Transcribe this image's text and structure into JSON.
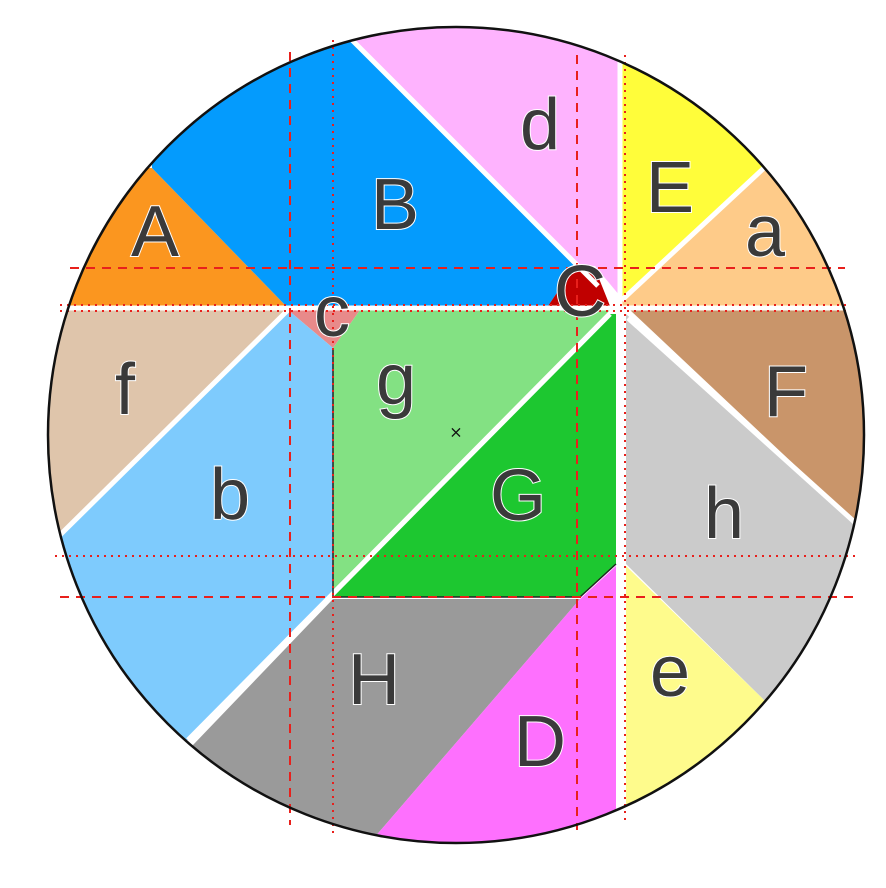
{
  "pieces": [
    {
      "id": "A",
      "label": "A",
      "color": "#fb961f"
    },
    {
      "id": "B",
      "label": "B",
      "color": "#049bfd"
    },
    {
      "id": "C",
      "label": "C",
      "color": "#c00000"
    },
    {
      "id": "D",
      "label": "D",
      "color": "#fe70fe"
    },
    {
      "id": "E",
      "label": "E",
      "color": "#fffd3a"
    },
    {
      "id": "F",
      "label": "F",
      "color": "#c9956a"
    },
    {
      "id": "G",
      "label": "G",
      "color": "#1dc730"
    },
    {
      "id": "H",
      "label": "H",
      "color": "#9a9a9a"
    },
    {
      "id": "a",
      "label": "a",
      "color": "#fecb89"
    },
    {
      "id": "b",
      "label": "b",
      "color": "#7ecbfd"
    },
    {
      "id": "c",
      "label": "c",
      "color": "#e88a8a"
    },
    {
      "id": "d",
      "label": "d",
      "color": "#feb3fe"
    },
    {
      "id": "e",
      "label": "e",
      "color": "#fefb8c"
    },
    {
      "id": "f",
      "label": "f",
      "color": "#dfc5ab"
    },
    {
      "id": "g",
      "label": "g",
      "color": "#83e183"
    },
    {
      "id": "h",
      "label": "h",
      "color": "#cbcbcb"
    }
  ],
  "center_marker": "×",
  "guide_color": "#e8201c"
}
